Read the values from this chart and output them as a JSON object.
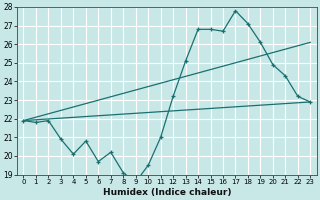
{
  "xlabel": "Humidex (Indice chaleur)",
  "xlim": [
    -0.5,
    23.5
  ],
  "ylim": [
    19,
    28
  ],
  "yticks": [
    19,
    20,
    21,
    22,
    23,
    24,
    25,
    26,
    27,
    28
  ],
  "xticks": [
    0,
    1,
    2,
    3,
    4,
    5,
    6,
    7,
    8,
    9,
    10,
    11,
    12,
    13,
    14,
    15,
    16,
    17,
    18,
    19,
    20,
    21,
    22,
    23
  ],
  "bg_color": "#c8e8e8",
  "grid_color": "#ffffff",
  "line_color": "#1a7070",
  "line1": {
    "x": [
      0,
      1,
      2,
      3,
      4,
      5,
      6,
      7,
      8,
      9,
      10,
      11,
      12,
      13,
      14,
      15,
      16,
      17,
      18,
      19,
      20,
      21,
      22,
      23
    ],
    "y": [
      21.9,
      21.8,
      21.9,
      20.9,
      20.1,
      20.8,
      19.7,
      20.2,
      19.1,
      18.6,
      19.5,
      21.0,
      23.2,
      25.1,
      26.8,
      26.8,
      26.7,
      27.8,
      27.1,
      26.1,
      24.9,
      24.3,
      23.2,
      22.9
    ]
  },
  "line2": {
    "x": [
      0,
      23
    ],
    "y": [
      21.9,
      22.9
    ]
  },
  "line3": {
    "x": [
      0,
      23
    ],
    "y": [
      21.9,
      26.1
    ]
  },
  "xlabel_fontsize": 6.5,
  "tick_fontsize": 5.5
}
